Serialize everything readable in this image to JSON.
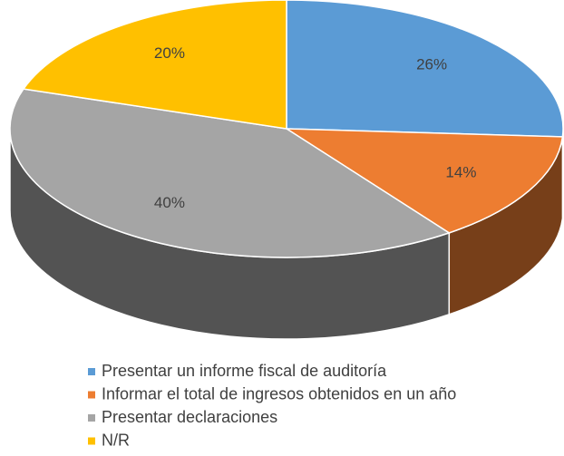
{
  "chart_data": {
    "type": "pie",
    "categories": [
      "Presentar un informe fiscal de auditoría",
      "Informar el total de ingresos obtenidos en un año",
      "Presentar declaraciones",
      "N/R"
    ],
    "values": [
      26,
      14,
      40,
      20
    ],
    "value_labels": [
      "26%",
      "14%",
      "40%",
      "20%"
    ],
    "colors": [
      "#5b9bd5",
      "#ed7d31",
      "#a5a5a5",
      "#ffc000"
    ],
    "legend": "bottom"
  }
}
